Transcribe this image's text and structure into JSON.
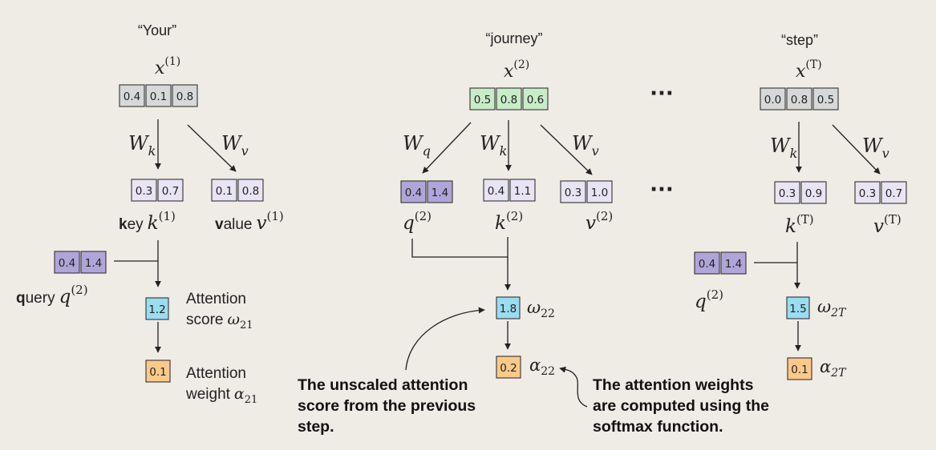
{
  "colors": {
    "gray": "#d7d9d9",
    "green": "#c8ecc8",
    "lavender": "#e8e4f4",
    "purple": "#b0a5d8",
    "cyan": "#9adcf0",
    "orange": "#fbc98a",
    "background": "#efebe5"
  },
  "ellipsis": "···",
  "col1": {
    "token": "“Your”",
    "x_base": "x",
    "x_sup": "(1)",
    "x_values": [
      "0.4",
      "0.1",
      "0.8"
    ],
    "wk_base": "W",
    "wk_sub": "k",
    "wv_base": "W",
    "wv_sub": "v",
    "k_values": [
      "0.3",
      "0.7"
    ],
    "v_values": [
      "0.1",
      "0.8"
    ],
    "key_bold": "k",
    "key_rest": "ey",
    "key_var": "k",
    "key_sup": "(1)",
    "value_bold": "v",
    "value_rest": "alue",
    "value_var": "v",
    "value_sup": "(1)",
    "q_values": [
      "0.4",
      "1.4"
    ],
    "query_bold": "q",
    "query_rest": "uery",
    "query_var": "q",
    "query_sup": "(2)",
    "score_value": "1.2",
    "score_line1": "Attention",
    "score_line2": "score",
    "score_sym": "ω",
    "score_sub": "21",
    "weight_value": "0.1",
    "weight_line1": "Attention",
    "weight_line2": "weight",
    "weight_sym": "α",
    "weight_sub": "21"
  },
  "col2": {
    "token": "“journey”",
    "x_base": "x",
    "x_sup": "(2)",
    "x_values": [
      "0.5",
      "0.8",
      "0.6"
    ],
    "wq_base": "W",
    "wq_sub": "q",
    "wk_base": "W",
    "wk_sub": "k",
    "wv_base": "W",
    "wv_sub": "v",
    "q_values": [
      "0.4",
      "1.4"
    ],
    "k_values": [
      "0.4",
      "1.1"
    ],
    "v_values": [
      "0.3",
      "1.0"
    ],
    "q_var": "q",
    "q_sup": "(2)",
    "k_var": "k",
    "k_sup": "(2)",
    "v_var": "v",
    "v_sup": "(2)",
    "score_value": "1.8",
    "score_sym": "ω",
    "score_sub": "22",
    "weight_value": "0.2",
    "weight_sym": "α",
    "weight_sub": "22"
  },
  "col3": {
    "token": "“step”",
    "x_base": "x",
    "x_sup": "(T)",
    "x_values": [
      "0.0",
      "0.8",
      "0.5"
    ],
    "wk_base": "W",
    "wk_sub": "k",
    "wv_base": "W",
    "wv_sub": "v",
    "k_values": [
      "0.3",
      "0.9"
    ],
    "v_values": [
      "0.3",
      "0.7"
    ],
    "k_var": "k",
    "k_sup": "(T)",
    "v_var": "v",
    "v_sup": "(T)",
    "q_values": [
      "0.4",
      "1.4"
    ],
    "q_var": "q",
    "q_sup": "(2)",
    "score_value": "1.5",
    "score_sym": "ω",
    "score_sub": "2T",
    "weight_value": "0.1",
    "weight_sym": "α",
    "weight_sub": "2T"
  },
  "notes": {
    "left": [
      "The unscaled attention",
      "score from the previous",
      "step."
    ],
    "right": [
      "The attention weights",
      "are computed using the",
      "softmax function."
    ]
  }
}
